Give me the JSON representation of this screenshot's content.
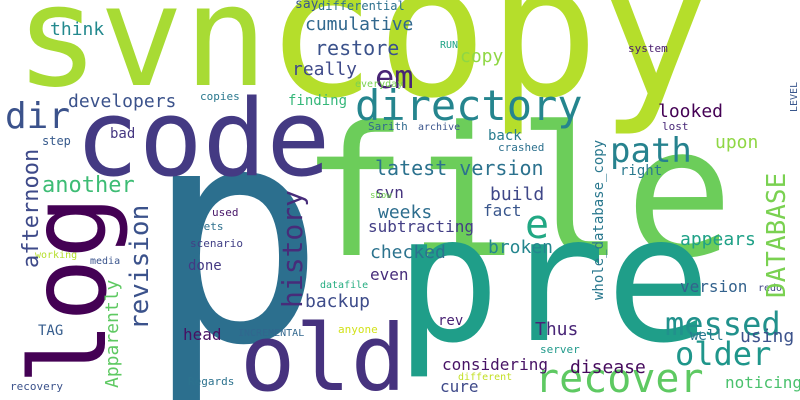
{
  "words": [
    "p",
    "file",
    "copy",
    "svn",
    "pre",
    "code",
    "old",
    "log",
    "directory",
    "em",
    "path",
    "e",
    "dir",
    "recover",
    "messed",
    "older",
    "latest version",
    "restore",
    "cumulative",
    "think",
    "say",
    "differential",
    "RUN",
    "copy",
    "really",
    "everyday",
    "developers",
    "finding",
    "copies",
    "looked",
    "Sarith",
    "archive",
    "back",
    "crashed",
    "bad",
    "step",
    "lost",
    "upon",
    "system",
    "another",
    "svn",
    "build",
    "right",
    "fact",
    "weeks",
    "show",
    "used",
    "sets",
    "subtracting",
    "scenario",
    "working",
    "media",
    "checked",
    "broken",
    "appears",
    "done",
    "even",
    "datafile",
    "version",
    "redo",
    "backup",
    "TAG",
    "rev",
    "head",
    "INCREMENTAL",
    "anyone",
    "Thus",
    "using",
    "well",
    "server",
    "considering",
    "disease",
    "different",
    "cure",
    "noticing",
    "Regards",
    "recovery",
    "history",
    "revision",
    "afternoon",
    "DATABASE",
    "Apparently",
    "whole_database_copy",
    "LEVEL"
  ]
}
